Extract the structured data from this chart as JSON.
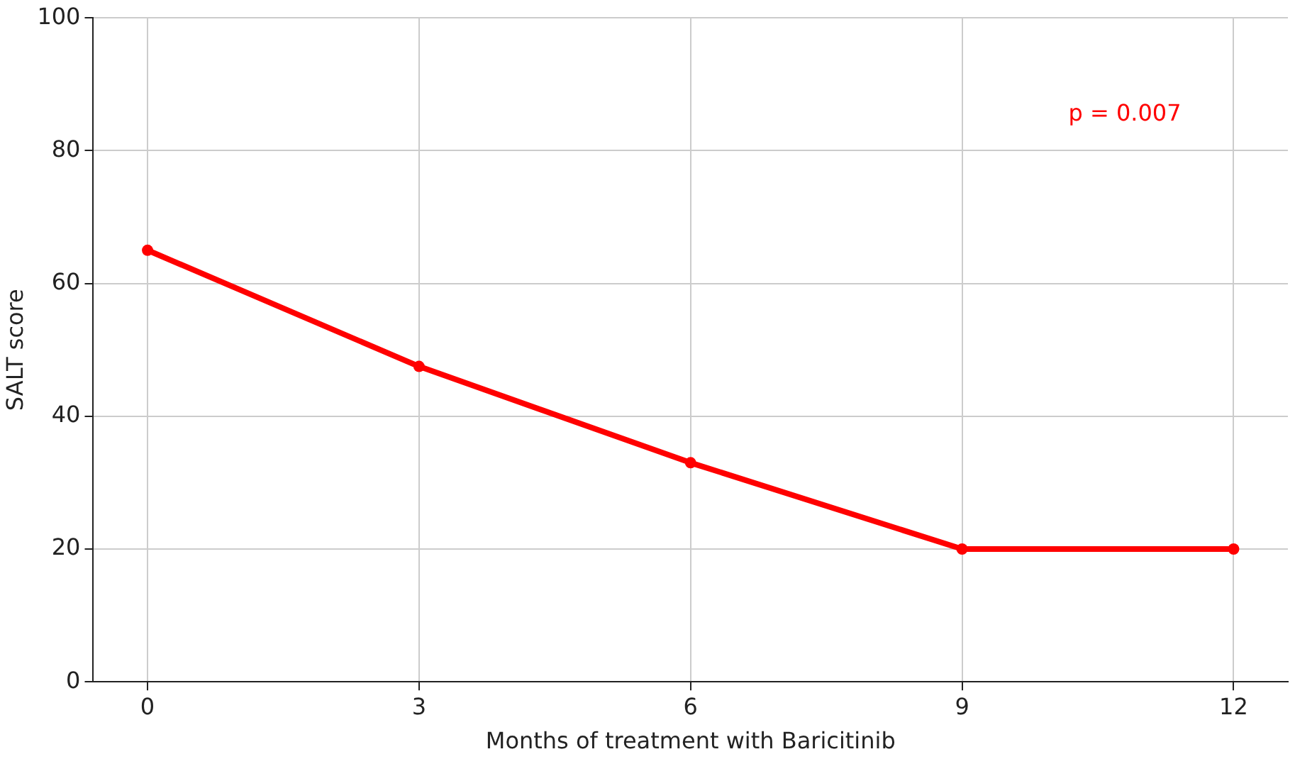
{
  "chart_data": {
    "type": "line",
    "xlabel": "Months of treatment with Baricitinib",
    "ylabel": "SALT score",
    "x": [
      0,
      3,
      6,
      9,
      12
    ],
    "series": [
      {
        "color": "#ff0000",
        "values": [
          65,
          47.5,
          33,
          20,
          20
        ]
      }
    ],
    "xlim": [
      -0.6,
      12.6
    ],
    "xticks": [
      0,
      3,
      6,
      9,
      12
    ],
    "ylim": [
      0,
      100
    ],
    "yticks": [
      0,
      20,
      40,
      60,
      80,
      100
    ],
    "grid": true,
    "legend": false,
    "marker": "circle",
    "line_style": "solid",
    "annotations": [
      "p = 0.007"
    ]
  }
}
